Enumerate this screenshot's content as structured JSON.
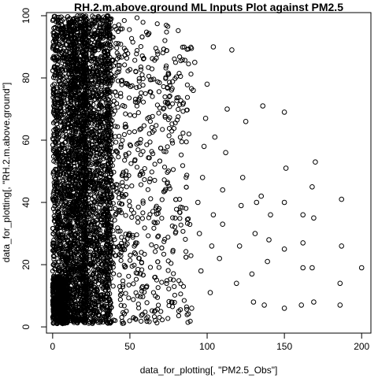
{
  "chart_data": {
    "type": "scatter",
    "title": "RH.2.m.above.ground ML Inputs Plot against PM2.5",
    "xlabel": "data_for_plotting[, \"PM2.5_Obs\"]",
    "ylabel": "data_for_plotting[, \"RH.2.m.above.ground\"]",
    "xlim": [
      -4,
      206
    ],
    "ylim": [
      -2,
      101
    ],
    "x_ticks": [
      0,
      50,
      100,
      150,
      200
    ],
    "y_ticks": [
      0,
      20,
      40,
      60,
      80,
      100
    ],
    "grid": false,
    "marker": "open-circle",
    "points": [
      [
        200,
        19
      ],
      [
        187,
        41
      ],
      [
        187,
        26
      ],
      [
        186,
        14
      ],
      [
        186,
        7
      ],
      [
        170,
        53
      ],
      [
        168,
        45
      ],
      [
        169,
        35
      ],
      [
        168,
        19
      ],
      [
        169,
        8
      ],
      [
        162,
        36
      ],
      [
        162,
        27
      ],
      [
        162,
        19
      ],
      [
        161,
        7
      ],
      [
        150,
        69
      ],
      [
        151,
        51
      ],
      [
        150,
        40
      ],
      [
        150,
        25
      ],
      [
        150,
        6
      ],
      [
        141,
        36
      ],
      [
        140,
        28
      ],
      [
        139,
        21
      ],
      [
        137,
        7
      ],
      [
        136,
        71
      ],
      [
        135,
        42
      ],
      [
        132,
        40
      ],
      [
        131,
        30
      ],
      [
        129,
        17
      ],
      [
        130,
        8
      ],
      [
        125,
        66
      ],
      [
        123,
        48
      ],
      [
        122,
        39
      ],
      [
        121,
        26
      ],
      [
        119,
        14
      ],
      [
        116,
        89
      ],
      [
        113,
        70
      ],
      [
        112,
        56
      ],
      [
        110,
        44
      ],
      [
        110,
        33
      ],
      [
        108,
        22
      ],
      [
        104,
        90
      ],
      [
        105,
        61
      ],
      [
        104,
        36
      ],
      [
        103,
        26
      ],
      [
        102,
        11
      ],
      [
        100,
        78
      ],
      [
        99,
        67
      ],
      [
        98,
        58
      ],
      [
        97,
        48
      ],
      [
        96,
        18
      ],
      [
        95,
        30
      ],
      [
        94,
        40
      ],
      [
        92,
        85
      ],
      [
        91,
        76
      ],
      [
        90,
        6
      ]
    ]
  }
}
